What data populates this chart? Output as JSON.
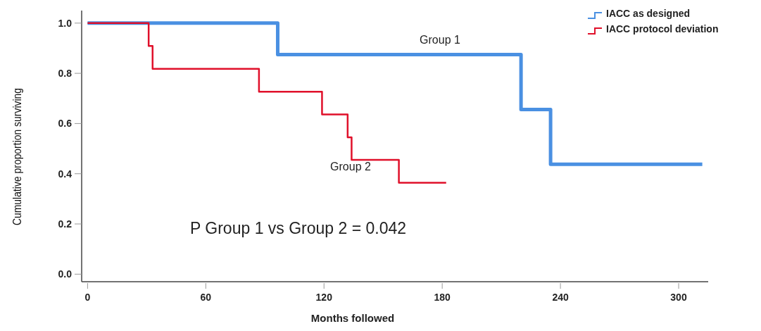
{
  "chart_data": {
    "type": "step",
    "xlabel": "Months followed",
    "ylabel": "Cumulative proportion surviving",
    "xlim": [
      -3,
      315
    ],
    "xticks": [
      0,
      60,
      120,
      180,
      240,
      300
    ],
    "ylim": [
      -0.03,
      1.05
    ],
    "yticks": [
      {
        "value": 0,
        "label": "0.0"
      },
      0.2,
      0.4,
      0.6,
      0.8,
      {
        "value": 1,
        "label": "1.0"
      }
    ],
    "series": [
      {
        "name": "IACC as designed",
        "color": "#4a90e2",
        "x": [
          0,
          96.5,
          220,
          235,
          312
        ],
        "values": [
          1,
          0.875,
          0.656,
          0.438,
          0.438
        ]
      },
      {
        "name": "IACC protocol deviation",
        "color": "#e0102a",
        "x": [
          0,
          31,
          33,
          87,
          119,
          132,
          134,
          158,
          182
        ],
        "values": [
          1,
          0.909,
          0.818,
          0.727,
          0.636,
          0.545,
          0.455,
          0.364,
          0.364
        ]
      }
    ],
    "annotations": [
      "Group 1",
      "Group 2",
      "P Group 1 vs Group 2 = 0.042"
    ],
    "legend": "top right",
    "grid": false,
    "line_style": "solid",
    "marker": "none"
  }
}
